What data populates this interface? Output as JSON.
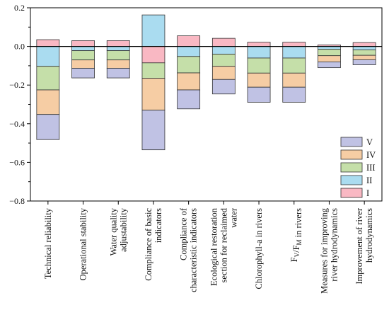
{
  "chart_data": {
    "type": "bar",
    "stacked": true,
    "diverging": true,
    "title": "",
    "xlabel": "",
    "ylabel": "",
    "ylim": [
      -0.8,
      0.2
    ],
    "yticks": [
      0.2,
      0.0,
      -0.2,
      -0.4,
      -0.6,
      -0.8
    ],
    "ytick_labels": [
      "0.2",
      "0.0",
      "−0.2",
      "−0.4",
      "−0.6",
      "−0.8"
    ],
    "grid": false,
    "legend_position": "bottom-right",
    "categories": [
      "Technical reliability",
      "Operational stability",
      "Water quality adjustability",
      "Compliance of basic indicators",
      "Compliance of characteristic indicators",
      "Ecological restoration section for reclaimed water",
      "Chlorophyll-a in rivers",
      "FV/FM in rivers",
      "Measures for improving river hydrodynamics",
      "Improvement of river hydrodynamics"
    ],
    "category_lines": [
      [
        "Technical reliability"
      ],
      [
        "Operational stability"
      ],
      [
        "Water quality",
        "adjustability"
      ],
      [
        "Compliance of basic",
        "indicators"
      ],
      [
        "Compliance of",
        "characteristic indicators"
      ],
      [
        "Ecological restoration",
        "section for reclaimed",
        "water"
      ],
      [
        "Chlorophyll-a in rivers"
      ],
      [
        "F_V/F_M in rivers"
      ],
      [
        "Measures for improving",
        "river hydrodynamics"
      ],
      [
        "Improvement of river",
        "hydrodynamics"
      ]
    ],
    "series": [
      {
        "name": "I",
        "color": "#f9b8c3",
        "values": [
          0.035,
          0.03,
          0.03,
          -0.085,
          0.055,
          0.042,
          0.022,
          0.022,
          0.008,
          0.02
        ]
      },
      {
        "name": "II",
        "color": "#aadcf0",
        "values": [
          -0.103,
          -0.022,
          -0.022,
          0.163,
          -0.052,
          -0.04,
          -0.06,
          -0.06,
          -0.015,
          -0.018
        ]
      },
      {
        "name": "III",
        "color": "#c5dfa9",
        "values": [
          -0.122,
          -0.048,
          -0.048,
          -0.08,
          -0.085,
          -0.063,
          -0.078,
          -0.078,
          -0.033,
          -0.028
        ]
      },
      {
        "name": "IV",
        "color": "#f6cda4",
        "values": [
          -0.127,
          -0.043,
          -0.043,
          -0.165,
          -0.088,
          -0.068,
          -0.073,
          -0.073,
          -0.032,
          -0.023
        ]
      },
      {
        "name": "V",
        "color": "#c0c2e4",
        "values": [
          -0.13,
          -0.05,
          -0.05,
          -0.205,
          -0.098,
          -0.075,
          -0.078,
          -0.078,
          -0.03,
          -0.026
        ]
      }
    ]
  }
}
